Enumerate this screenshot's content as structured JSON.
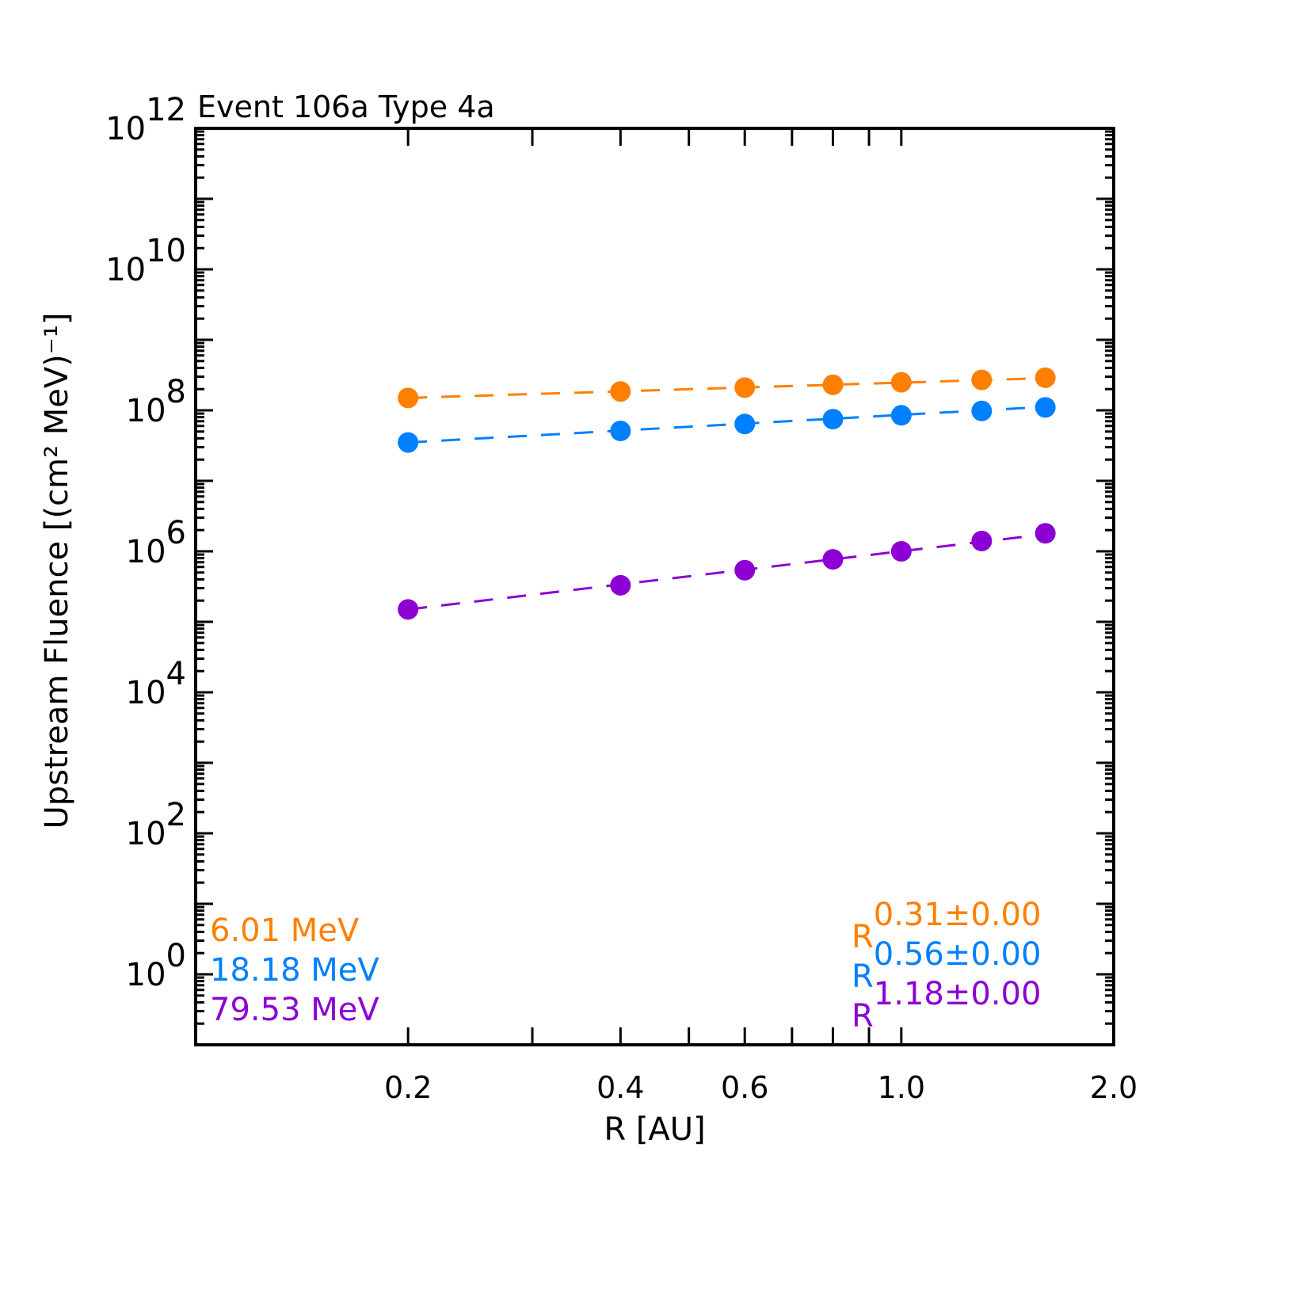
{
  "chart_data": {
    "type": "scatter",
    "title": "Event 106a Type 4a",
    "xlabel": "R [AU]",
    "ylabel": "Upstream Fluence [(cm² MeV)⁻¹]",
    "xscale": "log",
    "yscale": "log",
    "xlim": [
      0.1,
      2.0
    ],
    "ylim": [
      0.1,
      1000000000000.0
    ],
    "x_tick_labels": [
      {
        "value": 0.2,
        "label": "0.2"
      },
      {
        "value": 0.4,
        "label": "0.4"
      },
      {
        "value": 0.6,
        "label": "0.6"
      },
      {
        "value": 1.0,
        "label": "1.0"
      },
      {
        "value": 2.0,
        "label": "2.0"
      }
    ],
    "x_ticks": [
      0.2,
      0.3,
      0.4,
      0.5,
      0.6,
      0.7,
      0.8,
      0.9,
      1.0
    ],
    "y_tick_labels": [
      {
        "exp": 0,
        "base": "10",
        "sup": "0"
      },
      {
        "exp": 2,
        "base": "10",
        "sup": "2"
      },
      {
        "exp": 4,
        "base": "10",
        "sup": "4"
      },
      {
        "exp": 6,
        "base": "10",
        "sup": "6"
      },
      {
        "exp": 8,
        "base": "10",
        "sup": "8"
      },
      {
        "exp": 10,
        "base": "10",
        "sup": "10"
      },
      {
        "exp": 12,
        "base": "10",
        "sup": "12"
      }
    ],
    "grid": false,
    "x": [
      0.2,
      0.4,
      0.6,
      0.8,
      1.0,
      1.3,
      1.6
    ],
    "series": [
      {
        "name": "6.01 MeV",
        "color": "#ff8000",
        "values": [
          150000000.0,
          185000000.0,
          210000000.0,
          230000000.0,
          250000000.0,
          270000000.0,
          290000000.0
        ],
        "fit_label_base": "R",
        "fit_label_exp": "0.31±0.00",
        "fit_index": 0.31
      },
      {
        "name": "18.18 MeV",
        "color": "#0080ff",
        "values": [
          35000000.0,
          51000000.0,
          64000000.0,
          75000000.0,
          85000000.0,
          98000000.0,
          110000000.0
        ],
        "fit_label_base": "R",
        "fit_label_exp": "0.56±0.00",
        "fit_index": 0.56
      },
      {
        "name": "79.53 MeV",
        "color": "#8c00d4",
        "values": [
          150000.0,
          330000.0,
          540000.0,
          770000.0,
          1000000.0,
          1400000.0,
          1800000.0
        ],
        "fit_label_base": "R",
        "fit_label_exp": "1.18±0.00",
        "fit_index": 1.18
      }
    ],
    "legend_placement": "bottom-left",
    "fit_legend_placement": "bottom-right"
  }
}
